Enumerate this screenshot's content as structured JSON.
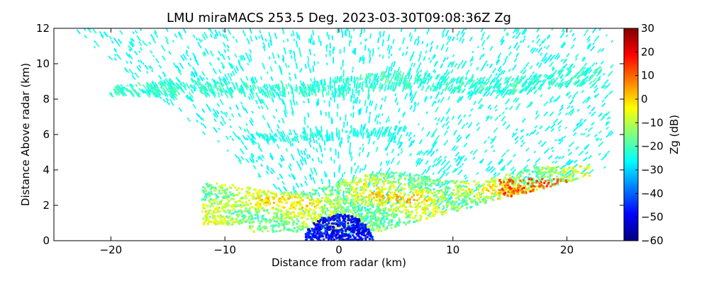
{
  "chart_data": {
    "type": "heatmap",
    "title": "LMU miraMACS 253.5 Deg. 2023-03-30T09:08:36Z  Zg",
    "xlabel": "Distance from radar (km)",
    "ylabel": "Distance Above radar  (km)",
    "xlim": [
      -25,
      25
    ],
    "ylim": [
      0,
      12
    ],
    "x_ticks": [
      -20,
      -10,
      0,
      10,
      20
    ],
    "x_tick_labels": [
      "−20",
      "−10",
      "0",
      "10",
      "20"
    ],
    "y_ticks": [
      0,
      2,
      4,
      6,
      8,
      10,
      12
    ],
    "y_tick_labels": [
      "0",
      "2",
      "4",
      "6",
      "8",
      "10",
      "12"
    ],
    "grid": false,
    "colorbar": {
      "label": "Zg (dB)",
      "range": [
        -60,
        30
      ],
      "ticks": [
        -60,
        -50,
        -40,
        -30,
        -20,
        -10,
        0,
        10,
        20,
        30
      ],
      "tick_labels": [
        "−60",
        "−50",
        "−40",
        "−30",
        "−20",
        "−10",
        "0",
        "10",
        "20",
        "30"
      ],
      "colormap": "jet",
      "colors": [
        "#00007f",
        "#0000ff",
        "#007fff",
        "#00ffff",
        "#7fff7f",
        "#ffff00",
        "#ff7f00",
        "#ff0000",
        "#7f0000"
      ]
    },
    "regions": [
      {
        "name": "sparse noise fan",
        "x_range": [
          -24,
          24
        ],
        "y_range": [
          0.3,
          12
        ],
        "value_dB": -25
      },
      {
        "name": "upper cloud layer",
        "x_range": [
          -20,
          23
        ],
        "y_range": [
          8.2,
          9.8
        ],
        "value_dB": -22
      },
      {
        "name": "mid-level layer",
        "x_range": [
          -8,
          6
        ],
        "y_range": [
          5.5,
          6.5
        ],
        "value_dB": -24
      },
      {
        "name": "low cloud layer",
        "x_range": [
          -12,
          22
        ],
        "y_range": [
          0.5,
          4.2
        ],
        "value_dB": -12
      },
      {
        "name": "weak echo core",
        "x_range": [
          -3,
          3
        ],
        "y_range": [
          0,
          1.5
        ],
        "value_dB": -48
      },
      {
        "name": "strong echo cell",
        "x_range": [
          14,
          20
        ],
        "y_range": [
          2.5,
          3.5
        ],
        "value_dB": 10
      }
    ]
  }
}
